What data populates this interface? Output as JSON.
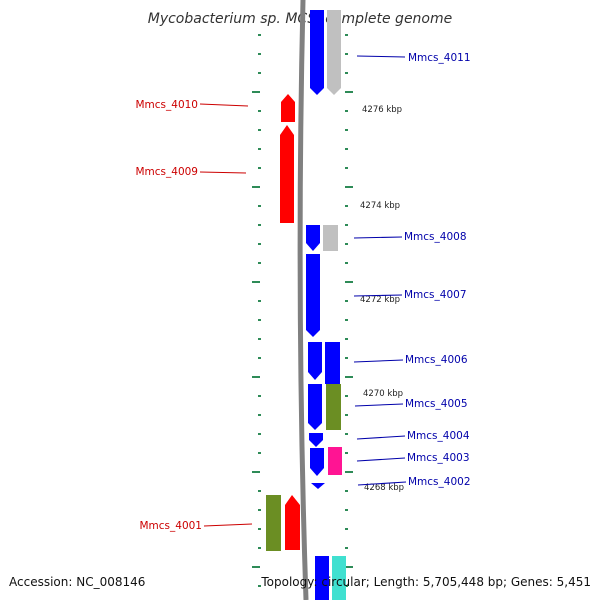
{
  "title": "Mycobacterium sp. MCS, complete genome",
  "footer": {
    "accession": "Accession: NC_008146",
    "stats": "Topology: circular; Length: 5,705,448 bp; Genes: 5,451"
  },
  "colors": {
    "reverse_strand": "#ff0000",
    "forward_strand": "#0000ff",
    "gray": "#c0c0c0",
    "olive": "#6b8e23",
    "magenta": "#ff1493",
    "cyan": "#40e0d0",
    "tick": "#2e8b57",
    "backbone": "#808080"
  },
  "ticks": [
    "4276 kbp",
    "4274 kbp",
    "4272 kbp",
    "4270 kbp",
    "4268 kbp"
  ],
  "genes_left": [
    {
      "label": "Mmcs_4010",
      "color": "#cc0000"
    },
    {
      "label": "Mmcs_4009",
      "color": "#cc0000"
    },
    {
      "label": "Mmcs_4001",
      "color": "#cc0000"
    }
  ],
  "genes_right": [
    {
      "label": "Mmcs_4011",
      "color": "#0000aa"
    },
    {
      "label": "Mmcs_4008",
      "color": "#0000aa"
    },
    {
      "label": "Mmcs_4007",
      "color": "#0000aa"
    },
    {
      "label": "Mmcs_4006",
      "color": "#0000aa"
    },
    {
      "label": "Mmcs_4005",
      "color": "#0000aa"
    },
    {
      "label": "Mmcs_4004",
      "color": "#0000aa"
    },
    {
      "label": "Mmcs_4003",
      "color": "#0000aa"
    },
    {
      "label": "Mmcs_4002",
      "color": "#0000aa"
    }
  ]
}
